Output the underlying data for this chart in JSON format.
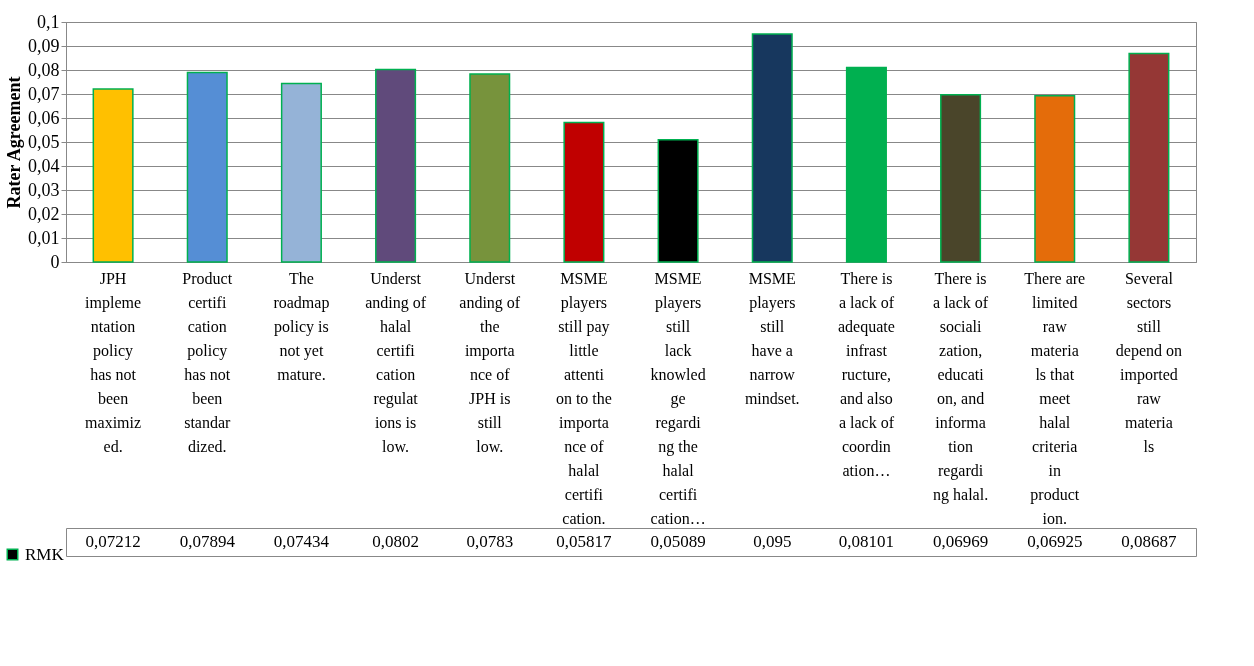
{
  "chart_data": {
    "type": "bar",
    "ylabel": "Rater Agreement",
    "categories": [
      "JPH implementation policy has not been maximized.",
      "Product certification policy has not been standardized.",
      "The roadmap policy is not yet mature.",
      "Understanding of halal certification regulations is low.",
      "Understanding of the importance of JPH is still low.",
      "MSME players still pay little attention to the importance of halal certification.",
      "MSME players still lack knowledge regarding the halal certification…",
      "MSME players still have a narrow mindset.",
      "There is a lack of adequate infrastructure, and also a lack of coordination…",
      "There is a lack of socialization, education, and information regarding halal.",
      "There are limited raw materials that meet halal criteria in production.",
      "Several sectors still depend on imported raw materials"
    ],
    "series": [
      {
        "name": "RMK",
        "color": "#00b050",
        "colors": [
          "#ffc000",
          "#558ed5",
          "#95b3d7",
          "#604a7b",
          "#77933c",
          "#c00000",
          "#000000",
          "#17375e",
          "#00b050",
          "#4a452a",
          "#e46c0a",
          "#953735"
        ],
        "values": [
          0.07212,
          0.07894,
          0.07434,
          0.0802,
          0.0783,
          0.05817,
          0.05089,
          0.095,
          0.08101,
          0.06969,
          0.06925,
          0.08687
        ],
        "value_labels": [
          "0,07212",
          "0,07894",
          "0,07434",
          "0,0802",
          "0,0783",
          "0,05817",
          "0,05089",
          "0,095",
          "0,08101",
          "0,06969",
          "0,06925",
          "0,08687"
        ]
      }
    ],
    "ylim": [
      0,
      0.1
    ],
    "yticks": [
      0,
      {
        "value": 0.01,
        "label": "0,01"
      },
      {
        "value": 0.02,
        "label": "0,02"
      },
      {
        "value": 0.03,
        "label": "0,03"
      },
      {
        "value": 0.04,
        "label": "0,04"
      },
      {
        "value": 0.05,
        "label": "0,05"
      },
      {
        "value": 0.06,
        "label": "0,06"
      },
      {
        "value": 0.07,
        "label": "0,07"
      },
      {
        "value": 0.08,
        "label": "0,08"
      },
      {
        "value": 0.09,
        "label": "0,09"
      },
      {
        "value": 0.1,
        "label": "0,1"
      }
    ],
    "grid": "y",
    "legend": "bottom left"
  }
}
